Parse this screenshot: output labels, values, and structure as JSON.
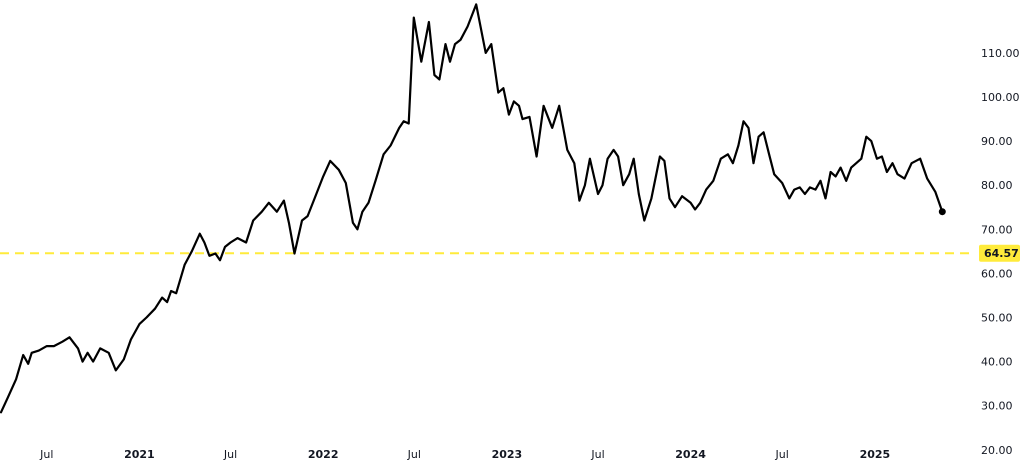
{
  "chart_data": {
    "type": "line",
    "xlabel": "",
    "ylabel": "",
    "y_ticks": [
      20,
      30,
      40,
      50,
      60,
      70,
      80,
      90,
      100,
      110
    ],
    "y_tick_labels": [
      "20.00",
      "30.00",
      "40.00",
      "50.00",
      "60.00",
      "70.00",
      "80.00",
      "90.00",
      "100.00",
      "110.00"
    ],
    "ylim": [
      17,
      122
    ],
    "x_ticks": [
      {
        "date": "2020-07-01",
        "label": "Jul",
        "bold": false
      },
      {
        "date": "2021-01-01",
        "label": "2021",
        "bold": true
      },
      {
        "date": "2021-07-01",
        "label": "Jul",
        "bold": false
      },
      {
        "date": "2022-01-01",
        "label": "2022",
        "bold": true
      },
      {
        "date": "2022-07-01",
        "label": "Jul",
        "bold": false
      },
      {
        "date": "2023-01-01",
        "label": "2023",
        "bold": true
      },
      {
        "date": "2023-07-01",
        "label": "Jul",
        "bold": false
      },
      {
        "date": "2024-01-01",
        "label": "2024",
        "bold": true
      },
      {
        "date": "2024-07-01",
        "label": "Jul",
        "bold": false
      },
      {
        "date": "2025-01-01",
        "label": "2025",
        "bold": true
      }
    ],
    "xlim": [
      "2020-03-30",
      "2025-07-13"
    ],
    "grid": false,
    "current_price": 64.57,
    "current_price_label": "64.57",
    "colors": {
      "line": "#000000",
      "price_line": "#ffeb3b",
      "price_badge": "#ffeb3b"
    },
    "series": [
      {
        "values": [
          [
            "2020-04-01",
            28.5
          ],
          [
            "2020-04-15",
            32
          ],
          [
            "2020-05-01",
            36
          ],
          [
            "2020-05-15",
            41.5
          ],
          [
            "2020-05-25",
            39.5
          ],
          [
            "2020-06-01",
            42
          ],
          [
            "2020-06-15",
            42.5
          ],
          [
            "2020-07-01",
            43.5
          ],
          [
            "2020-07-15",
            43.5
          ],
          [
            "2020-08-01",
            44.5
          ],
          [
            "2020-08-15",
            45.5
          ],
          [
            "2020-09-01",
            43
          ],
          [
            "2020-09-10",
            40
          ],
          [
            "2020-09-20",
            42
          ],
          [
            "2020-10-01",
            40
          ],
          [
            "2020-10-15",
            43
          ],
          [
            "2020-11-01",
            42
          ],
          [
            "2020-11-15",
            38
          ],
          [
            "2020-12-01",
            40.5
          ],
          [
            "2020-12-15",
            45
          ],
          [
            "2021-01-01",
            48.5
          ],
          [
            "2021-01-15",
            50
          ],
          [
            "2021-02-01",
            52
          ],
          [
            "2021-02-15",
            54.5
          ],
          [
            "2021-02-25",
            53.5
          ],
          [
            "2021-03-05",
            56
          ],
          [
            "2021-03-15",
            55.5
          ],
          [
            "2021-04-01",
            62
          ],
          [
            "2021-04-15",
            65
          ],
          [
            "2021-05-01",
            69
          ],
          [
            "2021-05-10",
            67
          ],
          [
            "2021-05-20",
            64
          ],
          [
            "2021-06-01",
            64.5
          ],
          [
            "2021-06-10",
            63
          ],
          [
            "2021-06-20",
            66
          ],
          [
            "2021-07-01",
            67
          ],
          [
            "2021-07-15",
            68
          ],
          [
            "2021-08-01",
            67
          ],
          [
            "2021-08-15",
            72
          ],
          [
            "2021-09-01",
            74
          ],
          [
            "2021-09-15",
            76
          ],
          [
            "2021-10-01",
            74
          ],
          [
            "2021-10-15",
            76.5
          ],
          [
            "2021-10-25",
            71.5
          ],
          [
            "2021-11-05",
            64.5
          ],
          [
            "2021-11-20",
            72
          ],
          [
            "2021-12-01",
            73
          ],
          [
            "2021-12-15",
            77
          ],
          [
            "2022-01-01",
            82
          ],
          [
            "2022-01-15",
            85.5
          ],
          [
            "2022-02-01",
            83.5
          ],
          [
            "2022-02-15",
            80.5
          ],
          [
            "2022-03-01",
            71.5
          ],
          [
            "2022-03-10",
            70
          ],
          [
            "2022-03-20",
            74
          ],
          [
            "2022-04-01",
            76
          ],
          [
            "2022-04-15",
            81
          ],
          [
            "2022-05-01",
            87
          ],
          [
            "2022-05-15",
            89
          ],
          [
            "2022-06-01",
            93
          ],
          [
            "2022-06-10",
            94.5
          ],
          [
            "2022-06-20",
            94
          ],
          [
            "2022-06-30",
            118
          ],
          [
            "2022-07-15",
            108
          ],
          [
            "2022-07-30",
            117
          ],
          [
            "2022-08-10",
            105
          ],
          [
            "2022-08-20",
            104
          ],
          [
            "2022-09-01",
            112
          ],
          [
            "2022-09-10",
            108
          ],
          [
            "2022-09-20",
            112
          ],
          [
            "2022-10-01",
            113
          ],
          [
            "2022-10-15",
            116
          ],
          [
            "2022-11-01",
            121
          ],
          [
            "2022-11-20",
            110
          ],
          [
            "2022-12-01",
            112
          ],
          [
            "2022-12-15",
            101
          ],
          [
            "2022-12-25",
            102
          ],
          [
            "2023-01-05",
            96
          ],
          [
            "2023-01-15",
            99
          ],
          [
            "2023-01-25",
            98
          ],
          [
            "2023-02-01",
            95
          ],
          [
            "2023-02-15",
            95.5
          ],
          [
            "2023-03-01",
            86.5
          ],
          [
            "2023-03-15",
            98
          ],
          [
            "2023-04-01",
            93
          ],
          [
            "2023-04-15",
            98
          ],
          [
            "2023-05-01",
            88
          ],
          [
            "2023-05-15",
            85
          ],
          [
            "2023-05-25",
            76.5
          ],
          [
            "2023-06-05",
            80
          ],
          [
            "2023-06-15",
            86
          ],
          [
            "2023-07-01",
            78
          ],
          [
            "2023-07-10",
            80
          ],
          [
            "2023-07-20",
            86
          ],
          [
            "2023-08-01",
            88
          ],
          [
            "2023-08-10",
            86.5
          ],
          [
            "2023-08-20",
            80
          ],
          [
            "2023-09-01",
            82.5
          ],
          [
            "2023-09-10",
            86
          ],
          [
            "2023-09-20",
            78
          ],
          [
            "2023-10-01",
            72
          ],
          [
            "2023-10-15",
            77
          ],
          [
            "2023-11-01",
            86.5
          ],
          [
            "2023-11-10",
            85.5
          ],
          [
            "2023-11-20",
            77
          ],
          [
            "2023-12-01",
            75
          ],
          [
            "2023-12-15",
            77.5
          ],
          [
            "2024-01-01",
            76
          ],
          [
            "2024-01-10",
            74.5
          ],
          [
            "2024-01-20",
            76
          ],
          [
            "2024-02-01",
            79
          ],
          [
            "2024-02-15",
            81
          ],
          [
            "2024-03-01",
            86
          ],
          [
            "2024-03-15",
            87
          ],
          [
            "2024-03-25",
            85
          ],
          [
            "2024-04-05",
            89
          ],
          [
            "2024-04-15",
            94.5
          ],
          [
            "2024-04-25",
            93
          ],
          [
            "2024-05-05",
            85
          ],
          [
            "2024-05-15",
            91
          ],
          [
            "2024-05-25",
            92
          ],
          [
            "2024-06-05",
            87
          ],
          [
            "2024-06-15",
            82.5
          ],
          [
            "2024-07-01",
            80.5
          ],
          [
            "2024-07-15",
            77
          ],
          [
            "2024-07-25",
            79
          ],
          [
            "2024-08-05",
            79.5
          ],
          [
            "2024-08-15",
            78
          ],
          [
            "2024-08-25",
            79.5
          ],
          [
            "2024-09-05",
            79
          ],
          [
            "2024-09-15",
            81
          ],
          [
            "2024-09-25",
            77
          ],
          [
            "2024-10-05",
            83
          ],
          [
            "2024-10-15",
            82
          ],
          [
            "2024-10-25",
            84
          ],
          [
            "2024-11-05",
            81
          ],
          [
            "2024-11-15",
            84
          ],
          [
            "2024-11-25",
            85
          ],
          [
            "2024-12-05",
            86
          ],
          [
            "2024-12-15",
            91
          ],
          [
            "2024-12-25",
            90
          ],
          [
            "2025-01-05",
            86
          ],
          [
            "2025-01-15",
            86.5
          ],
          [
            "2025-01-25",
            83
          ],
          [
            "2025-02-05",
            85
          ],
          [
            "2025-02-15",
            82.5
          ],
          [
            "2025-03-01",
            81.5
          ],
          [
            "2025-03-15",
            85
          ],
          [
            "2025-04-01",
            86
          ],
          [
            "2025-04-15",
            81.5
          ],
          [
            "2025-05-01",
            78.5
          ],
          [
            "2025-05-15",
            74
          ]
        ]
      }
    ]
  }
}
